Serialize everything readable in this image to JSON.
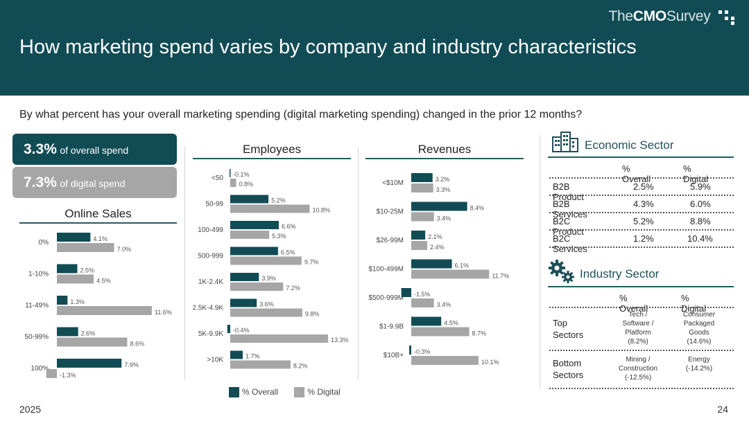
{
  "header": {
    "brand_prefix": "The",
    "brand_cmo": "CMO",
    "brand_suffix": "Survey",
    "title": "How marketing spend varies by company and industry characteristics"
  },
  "question": "By what percent has your overall marketing spending (digital marketing spending) changed in the prior 12 months?",
  "kpis": {
    "overall_value": "3.3%",
    "overall_label": "of overall spend",
    "digital_value": "7.3%",
    "digital_label": "of digital spend"
  },
  "colors": {
    "overall": "#114c55",
    "digital": "#a6a6a6",
    "header": "#114c55"
  },
  "legend": {
    "overall": "% Overall",
    "digital": "% Digital"
  },
  "chart_data": [
    {
      "type": "bar",
      "orientation": "horizontal",
      "title": "Online Sales",
      "categories": [
        "0%",
        "1-10%",
        "11-49%",
        "50-99%",
        "100%"
      ],
      "series": [
        {
          "name": "% Overall",
          "values": [
            4.1,
            2.5,
            1.3,
            2.6,
            7.9
          ],
          "labels": [
            "4.1%",
            "2.5%",
            "1.3%",
            "2.6%",
            "7.9%"
          ]
        },
        {
          "name": "% Digital",
          "values": [
            7.0,
            4.5,
            11.6,
            8.6,
            -1.3
          ],
          "labels": [
            "7.0%",
            "4.5%",
            "11.6%",
            "8.6%",
            "-1.3%"
          ]
        }
      ]
    },
    {
      "type": "bar",
      "orientation": "horizontal",
      "title": "Employees",
      "categories": [
        "<50",
        "50-99",
        "100-499",
        "500-999",
        "1K-2.4K",
        "2.5K-4.9K",
        "5K-9.9K",
        ">10K"
      ],
      "series": [
        {
          "name": "% Overall",
          "values": [
            -0.1,
            5.2,
            6.6,
            6.5,
            3.9,
            3.6,
            -0.4,
            1.7
          ],
          "labels": [
            "-0.1%",
            "5.2%",
            "6.6%",
            "6.5%",
            "3.9%",
            "3.6%",
            "-0.4%",
            "1.7%"
          ]
        },
        {
          "name": "% Digital",
          "values": [
            0.8,
            10.8,
            5.3,
            9.7,
            7.2,
            9.8,
            13.3,
            8.2
          ],
          "labels": [
            "0.8%",
            "10.8%",
            "5.3%",
            "9.7%",
            "7.2%",
            "9.8%",
            "13.3%",
            "8.2%"
          ]
        }
      ]
    },
    {
      "type": "bar",
      "orientation": "horizontal",
      "title": "Revenues",
      "categories": [
        "<$10M",
        "$10-25M",
        "$26-99M",
        "$100-499M",
        "$500-999M",
        "$1-9.9B",
        "$10B+"
      ],
      "series": [
        {
          "name": "% Overall",
          "values": [
            3.2,
            8.4,
            2.1,
            6.1,
            -1.5,
            4.5,
            -0.3
          ],
          "labels": [
            "3.2%",
            "8.4%",
            "2.1%",
            "6.1%",
            "-1.5%",
            "4.5%",
            "-0.3%"
          ]
        },
        {
          "name": "% Digital",
          "values": [
            3.3,
            3.4,
            2.4,
            11.7,
            3.4,
            8.7,
            10.1
          ],
          "labels": [
            "3.3%",
            "3.4%",
            "2.4%",
            "11.7%",
            "3.4%",
            "8.7%",
            "10.1%"
          ]
        }
      ]
    }
  ],
  "economic": {
    "title": "Economic Sector",
    "col_overall": "% Overall",
    "col_digital": "% Digital",
    "rows": [
      {
        "label": "B2B Product",
        "overall": "2.5%",
        "digital": "5.9%"
      },
      {
        "label": "B2B Services",
        "overall": "4.3%",
        "digital": "6.0%"
      },
      {
        "label": "B2C Product",
        "overall": "5.2%",
        "digital": "8.8%"
      },
      {
        "label": "B2C Services",
        "overall": "1.2%",
        "digital": "10.4%"
      }
    ]
  },
  "industry": {
    "title": "Industry Sector",
    "col_overall": "% Overall",
    "col_digital": "% Digital",
    "top_label": "Top Sectors",
    "top_overall": [
      "Tech /",
      "Software /",
      "Platform",
      "(8.2%)"
    ],
    "top_digital": [
      "Consumer",
      "Packaged",
      "Goods",
      "(14.6%)"
    ],
    "bottom_label": "Bottom Sectors",
    "bottom_overall": [
      "Mining /",
      "Construction",
      "(-12.5%)"
    ],
    "bottom_digital": [
      "Energy",
      "(-14.2%)"
    ]
  },
  "footer": {
    "year": "2025",
    "page": "24"
  }
}
